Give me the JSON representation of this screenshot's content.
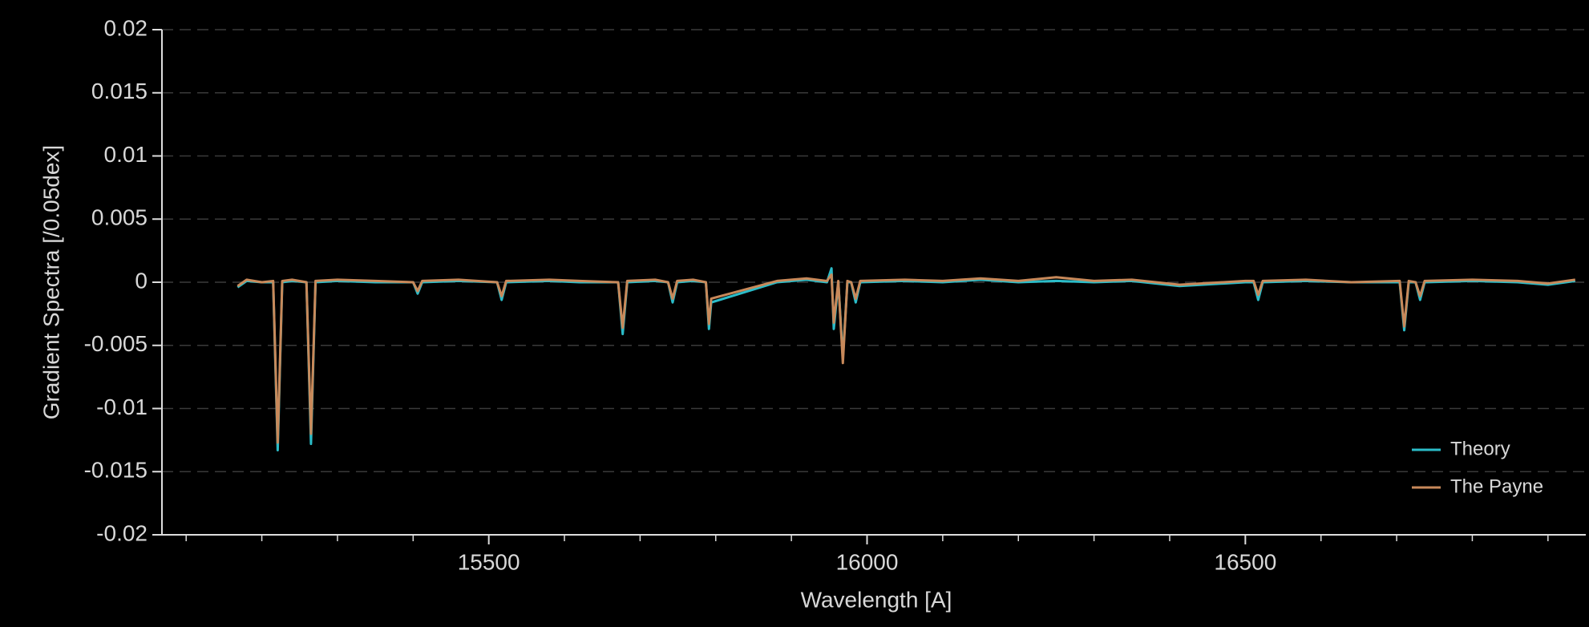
{
  "chart_data": {
    "type": "line",
    "xlabel": "Wavelength [A]",
    "ylabel": "Gradient Spectra [/0.05dex]",
    "x": [
      15168,
      15180,
      15200,
      15215,
      15221,
      15227,
      15240,
      15259,
      15265,
      15271,
      15300,
      15350,
      15400,
      15406,
      15412,
      15460,
      15511,
      15517,
      15523,
      15580,
      15620,
      15671,
      15677,
      15683,
      15720,
      15737,
      15743,
      15749,
      15770,
      15787,
      15791,
      15794,
      15881,
      15920,
      15947,
      15953,
      15956,
      15962,
      15968,
      15974,
      15979,
      15985,
      15991,
      16050,
      16100,
      16150,
      16200,
      16250,
      16300,
      16350,
      16413,
      16500,
      16511,
      16517,
      16523,
      16580,
      16640,
      16704,
      16710,
      16716,
      16725,
      16731,
      16737,
      16800,
      16860,
      16900,
      16936
    ],
    "series": [
      {
        "name": "Theory",
        "color": "#2bbcc8",
        "values": [
          -0.0004,
          0.0001,
          0,
          0,
          -0.0133,
          0,
          0.0001,
          0,
          -0.0128,
          0,
          0.0001,
          0,
          0,
          -0.0009,
          0,
          0.0001,
          0,
          -0.0014,
          0,
          0.0001,
          0,
          0,
          -0.0041,
          0,
          0.0001,
          0,
          -0.0016,
          0,
          0.0001,
          0,
          -0.0037,
          -0.0016,
          0,
          0.0002,
          0,
          0.0011,
          -0.0037,
          0,
          -0.006,
          0,
          0,
          -0.0016,
          0,
          0.0001,
          0,
          0.0002,
          0,
          0.0001,
          0,
          0.0001,
          -0.0003,
          0,
          0,
          -0.0014,
          0,
          0.0001,
          0,
          0,
          -0.0038,
          0,
          0,
          -0.0014,
          0,
          0.0001,
          0,
          -0.0002,
          0.0001
        ]
      },
      {
        "name": "The Payne",
        "color": "#c8895a",
        "values": [
          -0.0003,
          0.0002,
          0,
          0.0001,
          -0.0127,
          0.0001,
          0.0002,
          0,
          -0.012,
          0.0001,
          0.0002,
          0.0001,
          0,
          -0.0007,
          0.0001,
          0.0002,
          0,
          -0.0011,
          0.0001,
          0.0002,
          0.0001,
          0,
          -0.0036,
          0.0001,
          0.0002,
          0,
          -0.0013,
          0.0001,
          0.0002,
          0,
          -0.0033,
          -0.0013,
          0.0001,
          0.0003,
          0.0001,
          0.0006,
          -0.0032,
          0.0001,
          -0.0064,
          0.0001,
          0,
          -0.0013,
          0.0001,
          0.0002,
          0.0001,
          0.0003,
          0.0001,
          0.0004,
          0.0001,
          0.0002,
          -0.0002,
          0.0001,
          0.0001,
          -0.001,
          0.0001,
          0.0002,
          0,
          0.0001,
          -0.0035,
          0.0001,
          0,
          -0.0011,
          0.0001,
          0.0002,
          0.0001,
          -0.0001,
          0.0002
        ]
      }
    ],
    "xlim": [
      15068,
      16950
    ],
    "xticks": [
      15500,
      16000,
      16500
    ],
    "xminorticks": [
      15100,
      15200,
      15300,
      15400,
      15600,
      15700,
      15800,
      15900,
      16100,
      16200,
      16300,
      16400,
      16600,
      16700,
      16800,
      16900
    ],
    "ylim": [
      -0.02,
      0.02
    ],
    "yticks": [
      0.02,
      0.015,
      0.01,
      0.005,
      0,
      -0.005,
      -0.01,
      -0.015,
      -0.02
    ],
    "grid": true,
    "legend": "lower right"
  }
}
